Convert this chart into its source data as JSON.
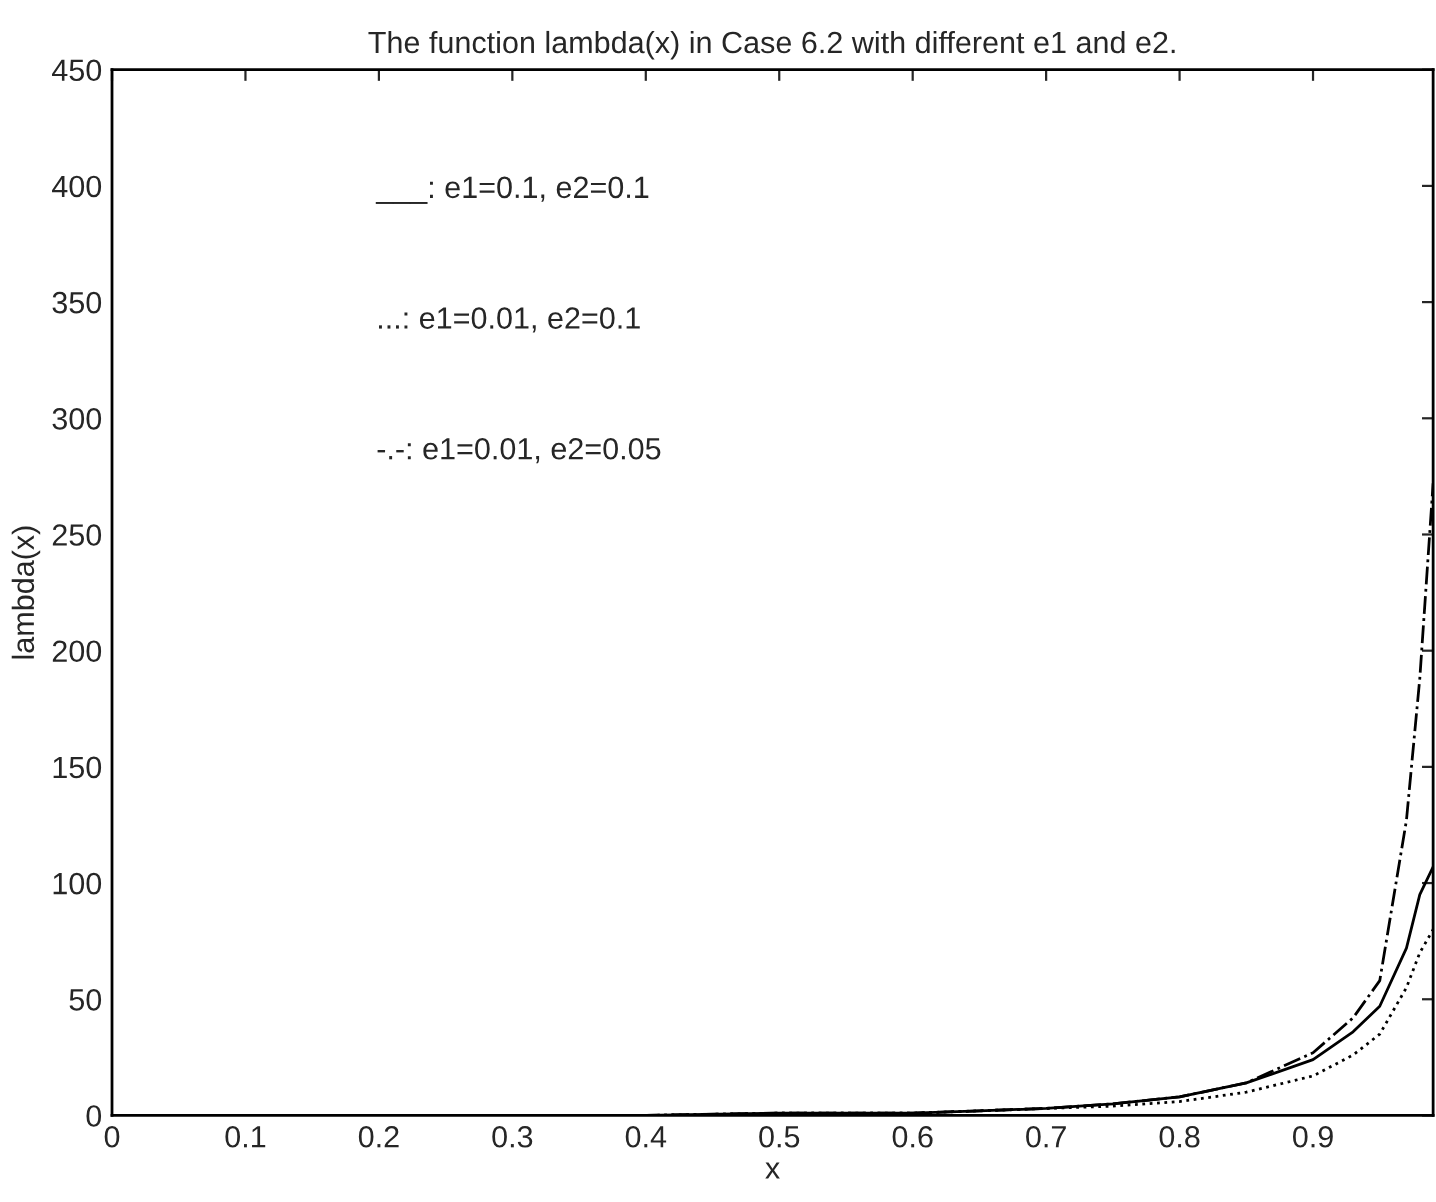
{
  "chart_data": {
    "type": "line",
    "title": "The function lambda(x) in Case 6.2 with different e1 and e2.",
    "xlabel": "x",
    "ylabel": "lambda(x)",
    "x": [
      0,
      0.1,
      0.2,
      0.3,
      0.4,
      0.5,
      0.6,
      0.65,
      0.7,
      0.75,
      0.8,
      0.85,
      0.9,
      0.93,
      0.95,
      0.97,
      0.98,
      0.99
    ],
    "series": [
      {
        "color": "#000000",
        "line_style": "solid",
        "values": [
          0,
          0,
          0,
          0,
          0,
          1,
          1,
          2,
          3,
          5,
          8,
          14,
          24,
          36,
          47,
          72,
          95,
          107
        ]
      },
      {
        "color": "#000000",
        "line_style": "dotted",
        "values": [
          0,
          0,
          0,
          0,
          0,
          1,
          1,
          2,
          3,
          4,
          6,
          10,
          17,
          26,
          35,
          55,
          70,
          80
        ]
      },
      {
        "color": "#000000",
        "line_style": "dashdot",
        "values": [
          0,
          0,
          0,
          0,
          0,
          1,
          1,
          2,
          3,
          5,
          8,
          14,
          27,
          42,
          58,
          127,
          188,
          272
        ]
      }
    ],
    "annotations": [
      "___: e1=0.1, e2=0.1",
      "...: e1=0.01, e2=0.1",
      "-.-: e1=0.01, e2=0.05"
    ],
    "xlim": [
      0,
      0.99
    ],
    "xticks": [
      0,
      0.1,
      0.2,
      0.3,
      0.4,
      0.5,
      0.6,
      0.7,
      0.8,
      0.9
    ],
    "ylim": [
      0,
      450
    ],
    "yticks": [
      0,
      50,
      100,
      150,
      200,
      250,
      300,
      350,
      400,
      450
    ],
    "grid": false,
    "legend": false
  }
}
